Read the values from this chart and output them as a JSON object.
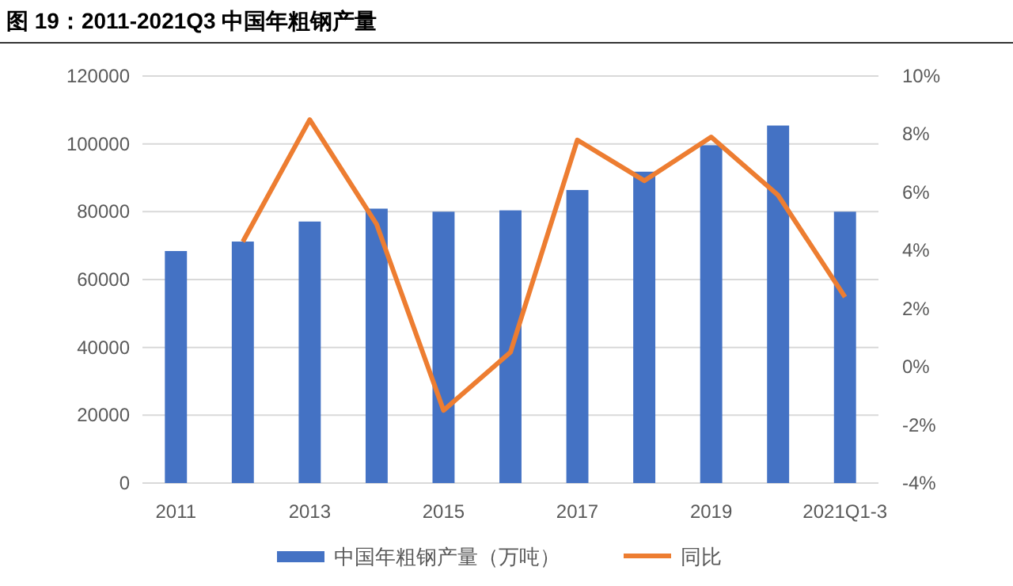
{
  "chart_data": {
    "type": "bar",
    "title": "图 19：2011-2021Q3 中国年粗钢产量",
    "categories": [
      "2011",
      null,
      "2013",
      null,
      "2015",
      null,
      "2017",
      null,
      "2019",
      null,
      "2021Q1-3"
    ],
    "series": [
      {
        "name": "中国年粗钢产量（万吨）",
        "color": "#4472c4",
        "values": [
          68400,
          71200,
          77100,
          80900,
          80000,
          80400,
          86400,
          91800,
          99600,
          105400,
          80000
        ]
      },
      {
        "name": "同比",
        "type": "line",
        "axis": "y2",
        "color": "#ed7d31",
        "values": [
          null,
          4.3,
          8.5,
          4.9,
          -1.5,
          0.5,
          7.8,
          6.4,
          7.9,
          5.9,
          2.4
        ]
      }
    ],
    "ylim": [
      0,
      120000
    ],
    "yticks": [
      0,
      20000,
      40000,
      60000,
      80000,
      100000,
      120000
    ],
    "y2lim": [
      -4,
      10
    ],
    "y2ticks": [
      {
        "value": -4,
        "label": "-4%"
      },
      {
        "value": -2,
        "label": "-2%"
      },
      {
        "value": 0,
        "label": "0%"
      },
      {
        "value": 2,
        "label": "2%"
      },
      {
        "value": 4,
        "label": "4%"
      },
      {
        "value": 6,
        "label": "6%"
      },
      {
        "value": 8,
        "label": "8%"
      },
      {
        "value": 10,
        "label": "10%"
      }
    ],
    "grid": "y",
    "legend": "bottom"
  }
}
